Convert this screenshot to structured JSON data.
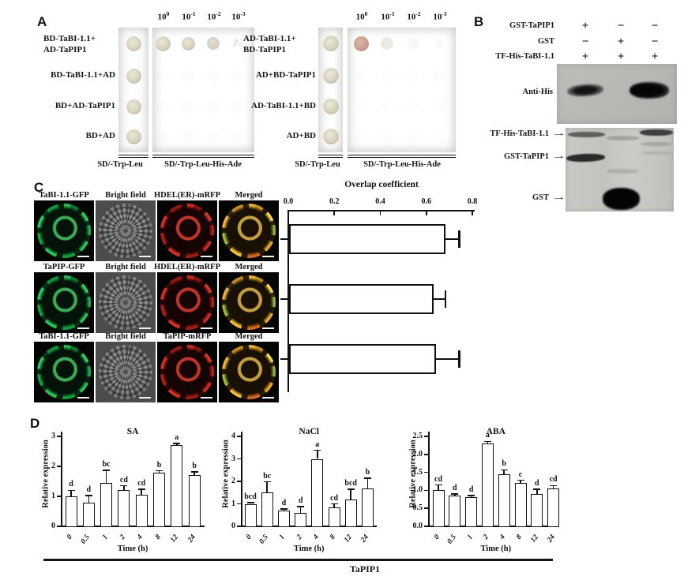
{
  "figure": {
    "panel_a": {
      "label": "A",
      "dilution_base": "10",
      "dilution_exponents": [
        "0",
        "-1",
        "-2",
        "-3"
      ],
      "media": [
        "SD/-Trp-Leu",
        "SD/-Trp-Leu-His-Ade"
      ],
      "left": {
        "rows": [
          {
            "line1": "BD-TaBI-1.1+",
            "line2": "AD-TaPIP1"
          },
          {
            "line1": "BD-TaBI-1.1+AD"
          },
          {
            "line1": "BD+AD-TaPIP1"
          },
          {
            "line1": "BD+AD"
          }
        ]
      },
      "right": {
        "rows": [
          {
            "line1": "AD-TaBI-1.1+",
            "line2": "BD-TaPIP1"
          },
          {
            "line1": "AD+BD-TaPIP1"
          },
          {
            "line1": "AD-TaBI-1.1+BD"
          },
          {
            "line1": "AD+BD"
          }
        ]
      }
    },
    "panel_b": {
      "label": "B",
      "condition_rows": [
        {
          "label": "GST-TaPIP1",
          "lanes": [
            "+",
            "−",
            "−"
          ]
        },
        {
          "label": "GST",
          "lanes": [
            "−",
            "+",
            "−"
          ]
        },
        {
          "label": "TF-His-TaBI-1.1",
          "lanes": [
            "+",
            "+",
            "+"
          ]
        }
      ],
      "blot_label": "Anti-His",
      "gel_band_labels": [
        "TF-His-TaBI-1.1",
        "GST-TaPIP1",
        "GST"
      ]
    },
    "panel_c": {
      "label": "C",
      "image_rows": [
        {
          "labels": [
            "TaBI-1.1-GFP",
            "Bright field",
            "HDEL(ER)-mRFP",
            "Merged"
          ]
        },
        {
          "labels": [
            "TaPIP-GFP",
            "Bright field",
            "HDEL(ER)-mRFP",
            "Merged"
          ]
        },
        {
          "labels": [
            "TaBI-1.1-GFP",
            "Bright field",
            "TaPIP-mRFP",
            "Merged"
          ]
        }
      ]
    },
    "panel_d": {
      "label": "D",
      "group_label": "TaPIP1"
    }
  },
  "icons": {
    "arrow_right": "→"
  },
  "chart_data": [
    {
      "id": "overlap",
      "type": "bar",
      "orientation": "horizontal",
      "title": "Overlap coefficient",
      "values": [
        0.68,
        0.63,
        0.64
      ],
      "errors": [
        0.06,
        0.05,
        0.1
      ],
      "xlim": [
        0,
        0.8
      ],
      "xticks": [
        "0.0",
        "0.2",
        "0.4",
        "0.6",
        "0.8"
      ],
      "legend": "none",
      "grid": false
    },
    {
      "id": "SA",
      "type": "bar",
      "title": "SA",
      "categories": [
        "0",
        "0.5",
        "1",
        "2",
        "4",
        "8",
        "12",
        "24"
      ],
      "values": [
        1.0,
        0.8,
        1.45,
        1.2,
        1.05,
        1.8,
        2.7,
        1.7
      ],
      "errors": [
        0.2,
        0.22,
        0.42,
        0.15,
        0.18,
        0.05,
        0.07,
        0.12
      ],
      "letters": [
        "d",
        "d",
        "bc",
        "cd",
        "cd",
        "b",
        "a",
        "b"
      ],
      "xlabel": "Time (h)",
      "ylabel": "Relative expression",
      "ylim": [
        0,
        3
      ],
      "yticks": [
        "0",
        "1",
        "2",
        "3"
      ],
      "grid": false
    },
    {
      "id": "NaCl",
      "type": "bar",
      "title": "NaCl",
      "categories": [
        "0",
        "0.5",
        "1",
        "2",
        "4",
        "8",
        "12",
        "24"
      ],
      "values": [
        1.0,
        1.5,
        0.7,
        0.6,
        3.0,
        0.85,
        1.2,
        1.7
      ],
      "errors": [
        0.05,
        0.48,
        0.07,
        0.28,
        0.38,
        0.15,
        0.45,
        0.45
      ],
      "letters": [
        "bcd",
        "bc",
        "d",
        "d",
        "a",
        "cd",
        "bcd",
        "b"
      ],
      "xlabel": "Time (h)",
      "ylabel": "Relative expression",
      "ylim": [
        0,
        4
      ],
      "yticks": [
        "0",
        "1",
        "2",
        "3",
        "4"
      ],
      "grid": false
    },
    {
      "id": "ABA",
      "type": "bar",
      "title": "ABA",
      "categories": [
        "0",
        "0.5",
        "1",
        "2",
        "4",
        "8",
        "12",
        "24"
      ],
      "values": [
        1.0,
        0.85,
        0.82,
        2.3,
        1.45,
        1.2,
        0.9,
        1.05
      ],
      "errors": [
        0.15,
        0.05,
        0.04,
        0.06,
        0.12,
        0.08,
        0.13,
        0.08
      ],
      "letters": [
        "cd",
        "d",
        "d",
        "a",
        "b",
        "c",
        "d",
        "cd"
      ],
      "xlabel": "Time (h)",
      "ylabel": "Relative expression",
      "ylim": [
        0,
        2.5
      ],
      "yticks": [
        "0.0",
        "0.5",
        "1.0",
        "1.5",
        "2.0",
        "2.5"
      ],
      "grid": false
    }
  ],
  "colors": {
    "plate_bg": "#6e746a",
    "plate_strip_bg": "#666c60",
    "colony": "#d8d3c0",
    "colony_pink": "#cda496",
    "blot_bg": "#b7b9b5",
    "gel_bg": "#c6c7c3",
    "bar_fill": "#ffffff",
    "bar_stroke": "#111111",
    "text": "#111111"
  }
}
